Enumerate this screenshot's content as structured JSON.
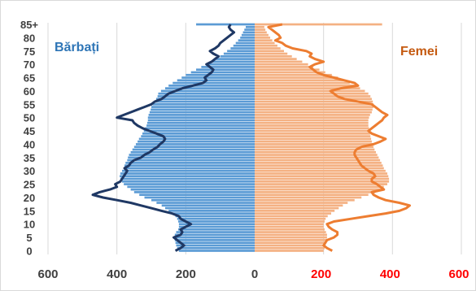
{
  "chart_data": {
    "type": "population-pyramid",
    "series": [
      {
        "name": "Bărbați",
        "side": "left",
        "kind": "bars+line"
      },
      {
        "name": "Femei",
        "side": "right",
        "kind": "bars+line"
      }
    ],
    "colors": {
      "male_bar": "#5b9bd5",
      "male_line": "#1f3864",
      "male_label": "#2e75b6",
      "female_bar": "#f4b183",
      "female_line": "#ed7d31",
      "female_label": "#c55a11",
      "grid": "#d9d9d9",
      "tick_left": "#404040",
      "tick_right": "#ff0000"
    },
    "y_ticks": [
      "0",
      "5",
      "10",
      "15",
      "20",
      "25",
      "30",
      "35",
      "40",
      "45",
      "50",
      "55",
      "60",
      "65",
      "70",
      "75",
      "80",
      "85+"
    ],
    "x_ticks_left": [
      "600",
      "400",
      "200",
      "0"
    ],
    "x_ticks_right": [
      "200",
      "400",
      "600"
    ],
    "x_range": [
      -600,
      600
    ],
    "grid": true,
    "male_bars": [
      220,
      225,
      228,
      230,
      232,
      232,
      232,
      228,
      222,
      220,
      220,
      222,
      225,
      230,
      240,
      250,
      260,
      270,
      285,
      300,
      320,
      335,
      350,
      360,
      370,
      380,
      385,
      390,
      392,
      390,
      385,
      380,
      378,
      375,
      370,
      368,
      365,
      360,
      355,
      350,
      345,
      340,
      336,
      330,
      326,
      322,
      318,
      314,
      312,
      310,
      310,
      308,
      305,
      302,
      300,
      296,
      290,
      286,
      282,
      280,
      272,
      260,
      250,
      238,
      225,
      212,
      200,
      185,
      170,
      155,
      140,
      126,
      112,
      100,
      90,
      80,
      70,
      62,
      55,
      48,
      42,
      38,
      34,
      30,
      26,
      170
    ],
    "female_bars": [
      200,
      203,
      206,
      208,
      210,
      210,
      210,
      207,
      203,
      200,
      200,
      203,
      206,
      212,
      222,
      232,
      244,
      256,
      270,
      290,
      310,
      330,
      350,
      365,
      375,
      385,
      390,
      390,
      388,
      385,
      380,
      375,
      372,
      368,
      364,
      360,
      356,
      352,
      348,
      345,
      342,
      340,
      338,
      336,
      335,
      333,
      332,
      330,
      330,
      330,
      332,
      335,
      340,
      342,
      345,
      345,
      343,
      340,
      336,
      330,
      320,
      306,
      292,
      276,
      258,
      242,
      224,
      205,
      188,
      170,
      155,
      138,
      122,
      108,
      95,
      85,
      75,
      66,
      58,
      51,
      45,
      40,
      35,
      31,
      28,
      370
    ],
    "male_line": [
      230,
      215,
      205,
      215,
      225,
      235,
      215,
      210,
      215,
      200,
      185,
      200,
      215,
      220,
      240,
      270,
      300,
      330,
      360,
      400,
      440,
      470,
      450,
      420,
      400,
      405,
      390,
      385,
      380,
      375,
      370,
      378,
      365,
      360,
      350,
      330,
      320,
      305,
      295,
      282,
      275,
      265,
      260,
      265,
      285,
      305,
      325,
      340,
      350,
      355,
      400,
      380,
      360,
      340,
      320,
      300,
      290,
      270,
      260,
      250,
      230,
      210,
      180,
      150,
      140,
      145,
      135,
      125,
      120,
      130,
      140,
      125,
      115,
      105,
      120,
      130,
      115,
      105,
      100,
      90,
      80,
      70,
      60,
      70,
      75,
      70
    ],
    "female_line": [
      225,
      210,
      200,
      205,
      210,
      230,
      240,
      240,
      225,
      215,
      210,
      230,
      280,
      330,
      380,
      420,
      440,
      450,
      420,
      380,
      360,
      345,
      340,
      375,
      365,
      355,
      340,
      340,
      350,
      345,
      330,
      320,
      310,
      305,
      300,
      295,
      290,
      290,
      295,
      310,
      345,
      365,
      380,
      360,
      340,
      330,
      340,
      350,
      360,
      370,
      375,
      385,
      370,
      360,
      350,
      340,
      300,
      260,
      240,
      230,
      220,
      250,
      300,
      290,
      260,
      230,
      200,
      180,
      170,
      160,
      175,
      200,
      175,
      160,
      165,
      150,
      110,
      90,
      80,
      60,
      75,
      70,
      60,
      50,
      40,
      80
    ]
  }
}
